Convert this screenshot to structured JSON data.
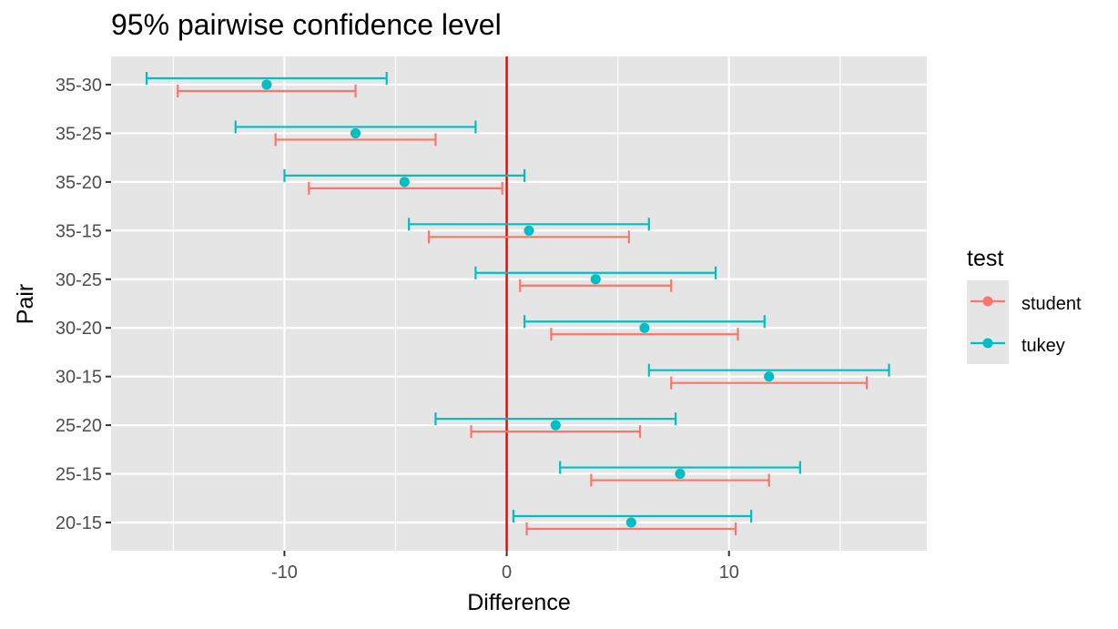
{
  "chart_data": {
    "type": "errorbar",
    "title": "95% pairwise confidence level",
    "xlabel": "Difference",
    "ylabel": "Pair",
    "xlim": [
      -17.8,
      18.9
    ],
    "x_ticks": [
      -10,
      0,
      10
    ],
    "x_tick_labels": [
      "-10",
      "0",
      "10"
    ],
    "categories": [
      "35-30",
      "35-25",
      "35-20",
      "35-15",
      "30-25",
      "30-20",
      "30-15",
      "25-20",
      "25-15",
      "20-15"
    ],
    "reference_line": {
      "x": 0,
      "color": "#ff0000"
    },
    "grid": true,
    "legend": {
      "title": "test",
      "position": "right",
      "entries": [
        {
          "name": "student",
          "color": "#f8766d"
        },
        {
          "name": "tukey",
          "color": "#00bfc4"
        }
      ]
    },
    "series": [
      {
        "name": "student",
        "color": "#f8766d",
        "estimate": [
          -10.8,
          -6.8,
          -4.6,
          1.0,
          4.0,
          6.2,
          11.8,
          2.2,
          7.8,
          5.6
        ],
        "lower": [
          -14.8,
          -10.4,
          -8.9,
          -3.5,
          0.6,
          2.0,
          7.4,
          -1.6,
          3.8,
          0.9
        ],
        "upper": [
          -6.8,
          -3.2,
          -0.2,
          5.5,
          7.4,
          10.4,
          16.2,
          6.0,
          11.8,
          10.3
        ]
      },
      {
        "name": "tukey",
        "color": "#00bfc4",
        "estimate": [
          -10.8,
          -6.8,
          -4.6,
          1.0,
          4.0,
          6.2,
          11.8,
          2.2,
          7.8,
          5.6
        ],
        "lower": [
          -16.2,
          -12.2,
          -10.0,
          -4.4,
          -1.4,
          0.8,
          6.4,
          -3.2,
          2.4,
          0.3
        ],
        "upper": [
          -5.4,
          -1.4,
          0.8,
          6.4,
          9.4,
          11.6,
          17.2,
          7.6,
          13.2,
          11.0
        ]
      }
    ]
  },
  "colors": {
    "panel_background": "#e5e5e5",
    "grid": "#ffffff"
  }
}
